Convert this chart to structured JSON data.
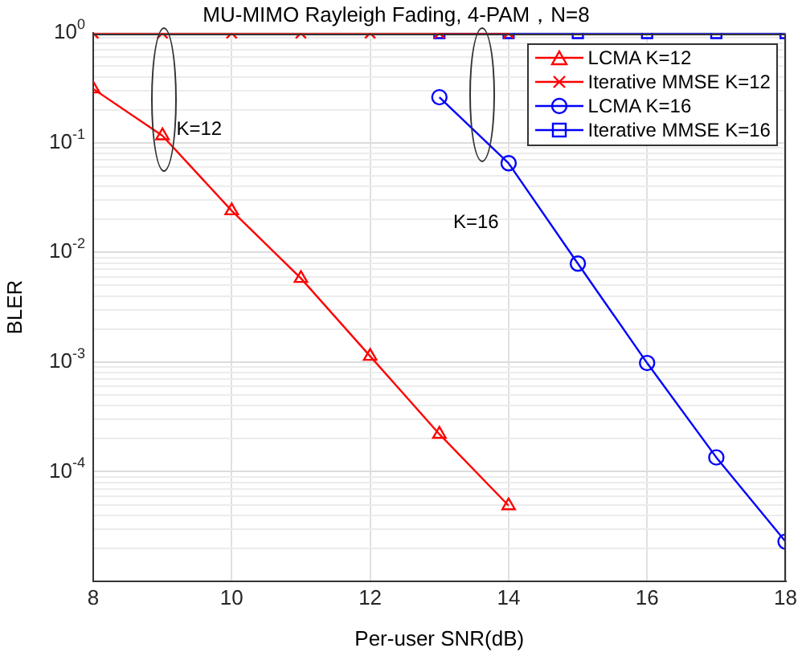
{
  "chart_data": {
    "type": "line",
    "title": "MU-MIMO Rayleigh Fading, 4-PAM，N=8",
    "xlabel": "Per-user SNR(dB)",
    "ylabel": "BLER",
    "xlim": [
      8,
      18
    ],
    "xticks": [
      8,
      10,
      12,
      14,
      16,
      18
    ],
    "ylim": [
      1e-05,
      1
    ],
    "yticks": [
      {
        "value": 1,
        "label": "10$^{0}$"
      },
      {
        "value": 0.1,
        "label": "10$^{-1}$"
      },
      {
        "value": 0.01,
        "label": "10$^{-2}$"
      },
      {
        "value": 0.001,
        "label": "10$^{-3}$"
      },
      {
        "value": 0.0001,
        "label": "10$^{-4}$"
      },
      {
        "value": 1e-05,
        "label": null
      }
    ],
    "log": "y",
    "grid": true,
    "legend": "top right",
    "line_style": "solid",
    "annotations": [
      "K=12",
      "K=16"
    ],
    "series": [
      {
        "name": "LCMA K=12",
        "color": "#ff0000",
        "marker": "triangle",
        "x": [
          8,
          9,
          10,
          11,
          12,
          13,
          14
        ],
        "values": [
          0.31,
          0.116,
          0.024,
          0.0058,
          0.00113,
          0.00022,
          4.9e-05
        ]
      },
      {
        "name": "Iterative MMSE K=12",
        "color": "#ff0000",
        "marker": "cross",
        "x": [
          8,
          9,
          10,
          11,
          12,
          13,
          14
        ],
        "values": [
          1,
          1,
          1,
          1,
          1,
          1,
          1
        ]
      },
      {
        "name": "LCMA K=16",
        "color": "#0000ff",
        "marker": "circle",
        "x": [
          13,
          14,
          15,
          16,
          17,
          18
        ],
        "values": [
          0.26,
          0.065,
          0.0079,
          0.00098,
          0.000135,
          2.3e-05
        ]
      },
      {
        "name": "Iterative MMSE K=16",
        "color": "#0000ff",
        "marker": "square",
        "x": [
          13,
          14,
          15,
          16,
          17,
          18
        ],
        "values": [
          1,
          1,
          1,
          1,
          1,
          1
        ]
      }
    ]
  }
}
